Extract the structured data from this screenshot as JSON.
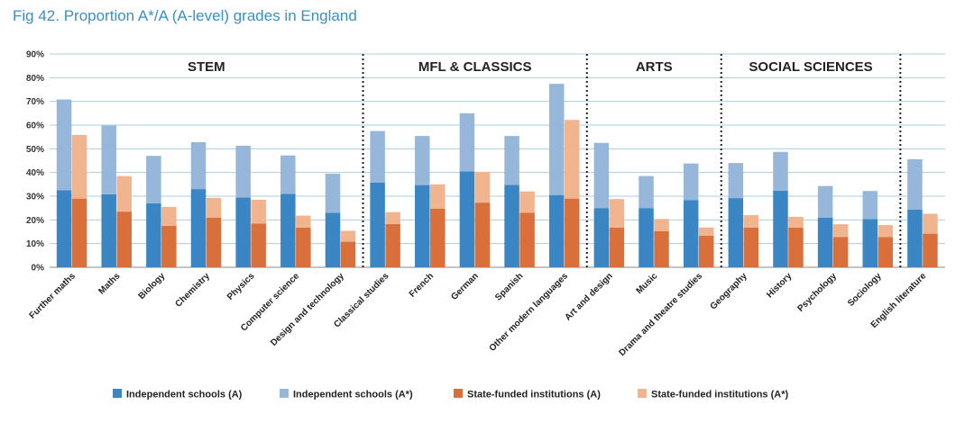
{
  "chart_data": {
    "type": "bar",
    "title": "Fig 42. Proportion A*/A (A-level) grades in England",
    "categories": [
      "Further maths",
      "Maths",
      "Biology",
      "Chemistry",
      "Physics",
      "Computer science",
      "Design and technology",
      "Classical studies",
      "French",
      "German",
      "Spanish",
      "Other modern languages",
      "Art and design",
      "Music",
      "Drama and theatre studies",
      "Geography",
      "History",
      "Psychology",
      "Sociology",
      "English literature"
    ],
    "groups": [
      {
        "label": "STEM",
        "start": 0,
        "end": 6
      },
      {
        "label": "MFL & CLASSICS",
        "start": 7,
        "end": 11
      },
      {
        "label": "ARTS",
        "start": 12,
        "end": 14
      },
      {
        "label": "SOCIAL SCIENCES",
        "start": 15,
        "end": 18
      }
    ],
    "series": [
      {
        "name": "Independent schools (A)",
        "color": "#3a86c4",
        "stack": "independent",
        "values": [
          32.5,
          30.8,
          27,
          33,
          29.5,
          31,
          23,
          35.8,
          34.7,
          40.5,
          34.8,
          30.5,
          25,
          25,
          28.3,
          29.2,
          32.3,
          21,
          20.3,
          24.3
        ]
      },
      {
        "name": "Independent schools (A*)",
        "color": "#96b6da",
        "stack": "independent",
        "values": [
          38.3,
          29,
          20,
          19.8,
          21.8,
          16.2,
          16.5,
          21.7,
          20.7,
          24.5,
          20.6,
          46.9,
          27.5,
          13.5,
          15.5,
          14.8,
          16.4,
          13.3,
          11.9,
          21.3
        ]
      },
      {
        "name": "State-funded institutions (A)",
        "color": "#d96f3b",
        "stack": "state",
        "values": [
          29,
          23.5,
          17.5,
          21,
          18.5,
          16.8,
          10.8,
          18.3,
          24.8,
          27.3,
          23,
          29,
          16.8,
          15.2,
          13.3,
          16.8,
          16.8,
          12.8,
          12.8,
          14.2
        ]
      },
      {
        "name": "State-funded institutions (A*)",
        "color": "#f0b48e",
        "stack": "state",
        "values": [
          26.8,
          15,
          8,
          8.3,
          10,
          5,
          4.6,
          5,
          10.2,
          13,
          9,
          33.2,
          12,
          5.2,
          3.5,
          5.2,
          4.5,
          5.4,
          5,
          8.4
        ]
      }
    ],
    "yaxis": {
      "min": 0,
      "max": 90,
      "step": 10,
      "ticks": [
        "0%",
        "10%",
        "20%",
        "30%",
        "40%",
        "50%",
        "60%",
        "70%",
        "80%",
        "90%"
      ]
    },
    "grid": true,
    "legend_position": "bottom"
  }
}
